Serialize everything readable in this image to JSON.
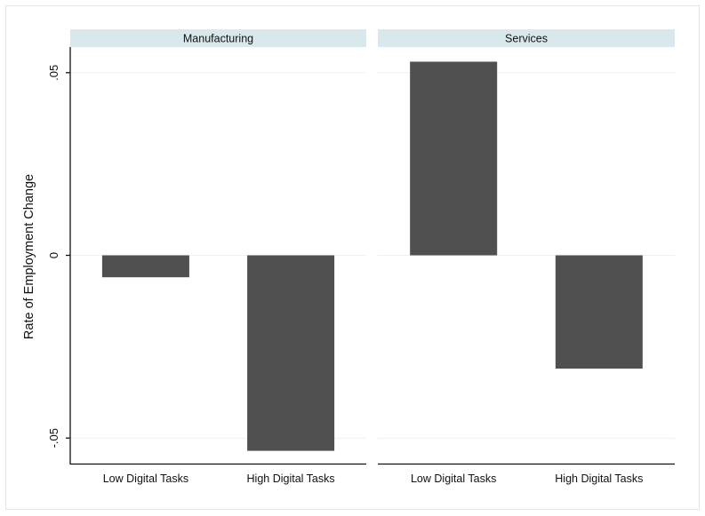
{
  "chart_data": {
    "type": "bar",
    "ylabel": "Rate of Employment Change",
    "xlabel": "",
    "ylim": [
      -0.057,
      0.057
    ],
    "yticks": [
      {
        "value": 0.05,
        "label": ".05"
      },
      {
        "value": 0,
        "label": "0"
      },
      {
        "value": -0.05,
        "label": "-.05"
      }
    ],
    "grid": true,
    "bar_color": "#505050",
    "strip_color": "#d9e8ec",
    "categories": [
      "Low Digital Tasks",
      "High Digital Tasks"
    ],
    "panels": [
      {
        "title": "Manufacturing",
        "values": [
          -0.006,
          -0.0535
        ]
      },
      {
        "title": "Services",
        "values": [
          0.053,
          -0.031
        ]
      }
    ]
  }
}
